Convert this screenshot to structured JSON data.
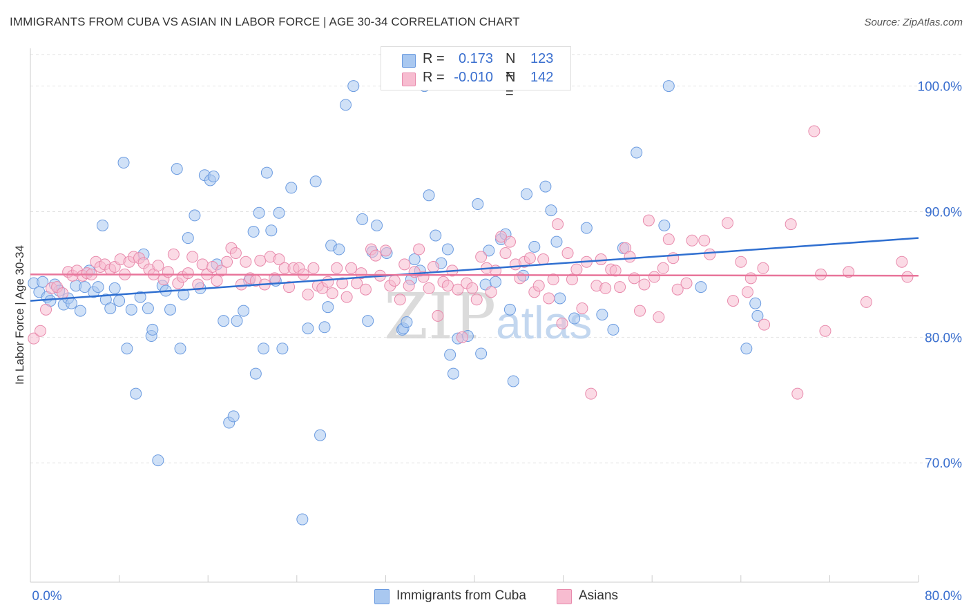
{
  "header": {
    "title": "IMMIGRANTS FROM CUBA VS ASIAN IN LABOR FORCE | AGE 30-34 CORRELATION CHART",
    "source": "Source: ZipAtlas.com"
  },
  "watermark": {
    "big": "ZIP",
    "small": "atlas"
  },
  "legend_stats": [
    {
      "r_label": "R = ",
      "r_value": "0.173",
      "n_label": "N =",
      "n_value": "123",
      "color": "#a9c8f0",
      "border": "#6b9be0"
    },
    {
      "r_label": "R = ",
      "r_value": "-0.010",
      "n_label": "N =",
      "n_value": "142",
      "color": "#f7bcd0",
      "border": "#e88aac"
    }
  ],
  "chart_data": {
    "type": "scatter",
    "title": "IMMIGRANTS FROM CUBA VS ASIAN IN LABOR FORCE | AGE 30-34 CORRELATION CHART",
    "xlabel": "",
    "ylabel": "In Labor Force | Age 30-34",
    "xlim": [
      0,
      80
    ],
    "ylim": [
      60.5,
      103
    ],
    "x_tick_labels": [
      "0.0%",
      "80.0%"
    ],
    "y_ticks": [
      70,
      80,
      90,
      100
    ],
    "y_tick_labels": [
      "70.0%",
      "80.0%",
      "90.0%",
      "100.0%"
    ],
    "grid": true,
    "legend_position": "bottom",
    "series": [
      {
        "name": "Immigrants from Cuba",
        "color": "#6b9be0",
        "fill": "#a9c8f0",
        "trend": {
          "x": [
            0,
            80
          ],
          "y": [
            82.9,
            87.9
          ],
          "color": "#2f6fd0"
        },
        "points": [
          [
            0.3,
            84.3
          ],
          [
            0.8,
            83.6
          ],
          [
            1.1,
            84.4
          ],
          [
            1.5,
            83.2
          ],
          [
            1.8,
            82.9
          ],
          [
            2.2,
            84.2
          ],
          [
            2.6,
            83.7
          ],
          [
            3.0,
            82.6
          ],
          [
            3.4,
            83.1
          ],
          [
            3.7,
            82.7
          ],
          [
            4.1,
            84.1
          ],
          [
            4.5,
            82.1
          ],
          [
            4.9,
            84.0
          ],
          [
            5.3,
            85.3
          ],
          [
            5.7,
            83.6
          ],
          [
            6.1,
            84.0
          ],
          [
            6.5,
            88.9
          ],
          [
            6.8,
            83.0
          ],
          [
            7.2,
            82.3
          ],
          [
            7.6,
            83.9
          ],
          [
            8.0,
            82.9
          ],
          [
            8.4,
            93.9
          ],
          [
            8.7,
            79.1
          ],
          [
            9.1,
            82.2
          ],
          [
            9.5,
            75.5
          ],
          [
            9.9,
            83.2
          ],
          [
            10.2,
            86.6
          ],
          [
            10.6,
            82.3
          ],
          [
            10.9,
            80.1
          ],
          [
            11.0,
            80.6
          ],
          [
            11.5,
            70.2
          ],
          [
            11.9,
            84.1
          ],
          [
            12.2,
            83.7
          ],
          [
            12.6,
            82.2
          ],
          [
            13.2,
            93.4
          ],
          [
            13.5,
            79.1
          ],
          [
            13.8,
            83.4
          ],
          [
            14.2,
            87.9
          ],
          [
            14.8,
            89.7
          ],
          [
            15.3,
            83.9
          ],
          [
            15.7,
            92.9
          ],
          [
            16.2,
            92.5
          ],
          [
            16.5,
            92.8
          ],
          [
            16.8,
            85.8
          ],
          [
            17.4,
            81.3
          ],
          [
            17.9,
            73.2
          ],
          [
            18.3,
            73.7
          ],
          [
            18.6,
            81.3
          ],
          [
            19.2,
            82.1
          ],
          [
            19.7,
            84.5
          ],
          [
            20.1,
            88.4
          ],
          [
            20.3,
            77.1
          ],
          [
            20.6,
            89.9
          ],
          [
            21.0,
            79.1
          ],
          [
            21.3,
            93.1
          ],
          [
            21.7,
            88.5
          ],
          [
            22.1,
            84.5
          ],
          [
            22.4,
            89.9
          ],
          [
            22.7,
            79.1
          ],
          [
            23.5,
            91.9
          ],
          [
            24.5,
            65.5
          ],
          [
            25.0,
            80.7
          ],
          [
            25.7,
            92.4
          ],
          [
            26.1,
            72.2
          ],
          [
            26.5,
            80.8
          ],
          [
            26.8,
            82.4
          ],
          [
            27.1,
            87.3
          ],
          [
            27.8,
            87.0
          ],
          [
            28.4,
            98.5
          ],
          [
            29.1,
            100.0
          ],
          [
            29.9,
            89.4
          ],
          [
            30.4,
            81.3
          ],
          [
            30.8,
            86.8
          ],
          [
            31.2,
            88.9
          ],
          [
            32.1,
            86.7
          ],
          [
            33.5,
            80.6
          ],
          [
            33.6,
            80.7
          ],
          [
            33.9,
            81.2
          ],
          [
            34.3,
            84.6
          ],
          [
            34.6,
            86.2
          ],
          [
            35.1,
            85.3
          ],
          [
            35.5,
            100.0
          ],
          [
            35.9,
            91.3
          ],
          [
            36.5,
            88.1
          ],
          [
            37.0,
            85.9
          ],
          [
            37.6,
            87.0
          ],
          [
            37.8,
            78.6
          ],
          [
            38.1,
            77.1
          ],
          [
            38.5,
            79.9
          ],
          [
            39.4,
            80.1
          ],
          [
            40.3,
            90.6
          ],
          [
            40.6,
            78.7
          ],
          [
            41.0,
            84.2
          ],
          [
            41.3,
            86.9
          ],
          [
            41.9,
            84.4
          ],
          [
            42.4,
            87.8
          ],
          [
            42.8,
            88.2
          ],
          [
            43.2,
            82.2
          ],
          [
            43.5,
            76.5
          ],
          [
            44.4,
            84.9
          ],
          [
            44.7,
            91.4
          ],
          [
            45.4,
            87.2
          ],
          [
            46.4,
            92.0
          ],
          [
            46.9,
            90.1
          ],
          [
            47.4,
            87.6
          ],
          [
            47.7,
            83.1
          ],
          [
            49.0,
            81.5
          ],
          [
            50.1,
            88.7
          ],
          [
            51.5,
            81.8
          ],
          [
            52.5,
            80.6
          ],
          [
            53.4,
            87.1
          ],
          [
            54.6,
            94.7
          ],
          [
            57.1,
            88.9
          ],
          [
            57.5,
            100.0
          ],
          [
            60.4,
            84.0
          ],
          [
            64.5,
            79.1
          ],
          [
            65.3,
            82.7
          ],
          [
            65.5,
            81.7
          ]
        ]
      },
      {
        "name": "Asians",
        "color": "#e88aac",
        "fill": "#f7bcd0",
        "trend": {
          "x": [
            0,
            80
          ],
          "y": [
            85.0,
            84.9
          ],
          "color": "#e8749a"
        },
        "points": [
          [
            0.3,
            79.9
          ],
          [
            0.9,
            80.5
          ],
          [
            1.4,
            82.2
          ],
          [
            1.9,
            83.9
          ],
          [
            2.4,
            84.0
          ],
          [
            2.9,
            83.5
          ],
          [
            3.4,
            85.2
          ],
          [
            3.8,
            84.9
          ],
          [
            4.2,
            85.3
          ],
          [
            4.7,
            84.9
          ],
          [
            5.1,
            85.1
          ],
          [
            5.5,
            85.0
          ],
          [
            5.9,
            86.0
          ],
          [
            6.3,
            85.6
          ],
          [
            6.7,
            85.8
          ],
          [
            7.2,
            85.4
          ],
          [
            7.6,
            85.6
          ],
          [
            8.1,
            86.2
          ],
          [
            8.5,
            85.0
          ],
          [
            8.9,
            86.0
          ],
          [
            9.3,
            86.4
          ],
          [
            9.8,
            86.3
          ],
          [
            10.2,
            85.9
          ],
          [
            10.7,
            85.4
          ],
          [
            11.1,
            85.0
          ],
          [
            11.5,
            85.7
          ],
          [
            12.0,
            84.6
          ],
          [
            12.4,
            85.2
          ],
          [
            12.9,
            86.6
          ],
          [
            13.3,
            84.3
          ],
          [
            13.7,
            84.8
          ],
          [
            14.2,
            85.1
          ],
          [
            14.6,
            86.4
          ],
          [
            15.1,
            84.2
          ],
          [
            15.5,
            85.8
          ],
          [
            15.9,
            85.0
          ],
          [
            16.4,
            85.6
          ],
          [
            16.8,
            84.5
          ],
          [
            17.2,
            85.3
          ],
          [
            17.7,
            86.0
          ],
          [
            18.1,
            87.1
          ],
          [
            18.5,
            86.7
          ],
          [
            19.0,
            84.2
          ],
          [
            19.4,
            86.0
          ],
          [
            19.8,
            84.7
          ],
          [
            20.3,
            84.5
          ],
          [
            20.7,
            86.1
          ],
          [
            21.1,
            84.2
          ],
          [
            21.6,
            86.4
          ],
          [
            22.0,
            84.7
          ],
          [
            22.4,
            86.2
          ],
          [
            22.9,
            85.5
          ],
          [
            23.3,
            84.0
          ],
          [
            23.7,
            85.5
          ],
          [
            24.2,
            85.5
          ],
          [
            24.6,
            85.0
          ],
          [
            25.0,
            83.4
          ],
          [
            25.5,
            85.5
          ],
          [
            25.9,
            84.1
          ],
          [
            26.3,
            83.9
          ],
          [
            26.8,
            84.4
          ],
          [
            27.2,
            83.5
          ],
          [
            27.6,
            85.5
          ],
          [
            28.1,
            84.3
          ],
          [
            28.5,
            83.2
          ],
          [
            28.9,
            85.5
          ],
          [
            29.4,
            84.3
          ],
          [
            29.8,
            85.1
          ],
          [
            30.2,
            83.8
          ],
          [
            30.7,
            87.0
          ],
          [
            31.1,
            86.5
          ],
          [
            31.5,
            84.9
          ],
          [
            32.0,
            86.9
          ],
          [
            32.4,
            84.1
          ],
          [
            32.8,
            84.5
          ],
          [
            33.3,
            83.0
          ],
          [
            33.7,
            85.8
          ],
          [
            34.1,
            84.1
          ],
          [
            34.6,
            85.2
          ],
          [
            35.0,
            87.0
          ],
          [
            35.4,
            84.8
          ],
          [
            35.9,
            83.9
          ],
          [
            36.3,
            85.6
          ],
          [
            36.7,
            81.7
          ],
          [
            37.2,
            84.4
          ],
          [
            37.6,
            84.1
          ],
          [
            38.0,
            85.3
          ],
          [
            38.5,
            83.8
          ],
          [
            38.9,
            80.0
          ],
          [
            39.3,
            84.3
          ],
          [
            39.8,
            83.9
          ],
          [
            40.2,
            83.0
          ],
          [
            40.6,
            86.4
          ],
          [
            41.1,
            85.5
          ],
          [
            41.5,
            83.6
          ],
          [
            41.9,
            85.3
          ],
          [
            42.4,
            88.0
          ],
          [
            42.8,
            86.7
          ],
          [
            43.2,
            87.6
          ],
          [
            43.7,
            85.8
          ],
          [
            44.1,
            84.7
          ],
          [
            44.5,
            86.0
          ],
          [
            45.0,
            86.3
          ],
          [
            45.4,
            83.6
          ],
          [
            45.8,
            84.1
          ],
          [
            46.2,
            86.2
          ],
          [
            46.7,
            83.1
          ],
          [
            47.1,
            84.6
          ],
          [
            47.5,
            89.0
          ],
          [
            47.9,
            81.1
          ],
          [
            48.4,
            86.7
          ],
          [
            48.8,
            84.6
          ],
          [
            49.2,
            85.4
          ],
          [
            49.7,
            82.3
          ],
          [
            50.1,
            86.0
          ],
          [
            50.5,
            75.5
          ],
          [
            51.0,
            84.1
          ],
          [
            51.4,
            86.2
          ],
          [
            51.8,
            83.9
          ],
          [
            52.3,
            85.4
          ],
          [
            52.7,
            85.3
          ],
          [
            53.1,
            84.0
          ],
          [
            53.6,
            87.1
          ],
          [
            54.0,
            86.4
          ],
          [
            54.4,
            84.7
          ],
          [
            54.9,
            82.1
          ],
          [
            55.3,
            84.2
          ],
          [
            55.7,
            89.3
          ],
          [
            56.2,
            84.8
          ],
          [
            56.6,
            81.6
          ],
          [
            57.0,
            85.5
          ],
          [
            57.5,
            87.8
          ],
          [
            57.9,
            86.3
          ],
          [
            58.3,
            83.8
          ],
          [
            59.1,
            84.3
          ],
          [
            59.6,
            87.7
          ],
          [
            60.7,
            87.7
          ],
          [
            61.2,
            86.6
          ],
          [
            62.8,
            89.1
          ],
          [
            63.3,
            82.9
          ],
          [
            64.0,
            86.0
          ],
          [
            64.6,
            83.6
          ],
          [
            64.9,
            84.7
          ],
          [
            66.0,
            85.5
          ],
          [
            66.1,
            81.0
          ],
          [
            68.5,
            89.0
          ],
          [
            69.1,
            75.5
          ],
          [
            70.6,
            96.4
          ],
          [
            71.2,
            85.0
          ],
          [
            71.6,
            80.5
          ],
          [
            73.7,
            85.2
          ],
          [
            75.3,
            82.8
          ],
          [
            78.5,
            86.0
          ],
          [
            79.0,
            84.8
          ]
        ]
      }
    ]
  },
  "axes": {
    "ylabel": "In Labor Force | Age 30-34",
    "x_min_label": "0.0%",
    "x_max_label": "80.0%"
  }
}
